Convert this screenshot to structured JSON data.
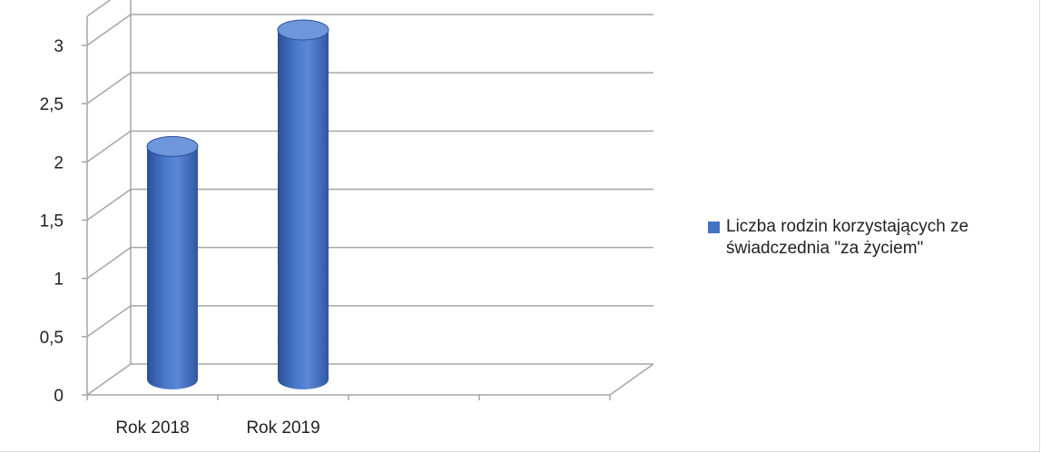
{
  "chart_data": {
    "type": "bar",
    "style": "3d-cylinder",
    "categories": [
      "Rok 2018",
      "Rok 2019"
    ],
    "series": [
      {
        "name": "Liczba rodzin korzystających ze świadczednia \"za życiem\"",
        "values": [
          2,
          3
        ]
      }
    ],
    "slots": 4,
    "ylim": [
      0,
      3.25
    ],
    "yticks": [
      "0",
      "0,5",
      "1",
      "1,5",
      "2",
      "2,5",
      "3"
    ],
    "ytick_values": [
      0,
      0.5,
      1,
      1.5,
      2,
      2.5,
      3
    ],
    "grid": true,
    "legend": "right",
    "colors": {
      "bar": "#4472C4",
      "bar_dark": "#2a4f96",
      "bar_light": "#6e96db",
      "grid": "#a6a6a6"
    }
  }
}
